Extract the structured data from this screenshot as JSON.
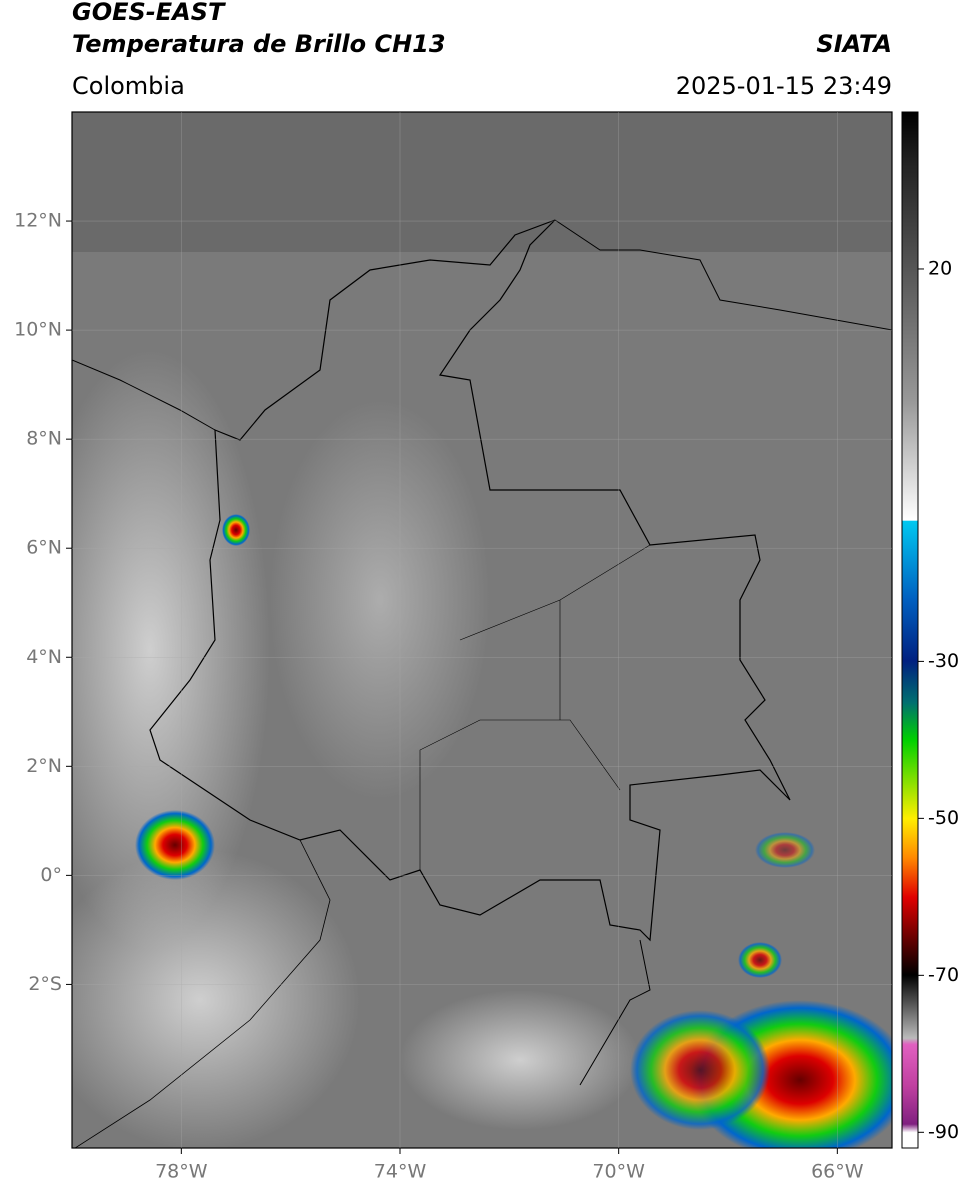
{
  "header": {
    "title": "GOES-EAST",
    "subtitle": "Temperatura de Brillo CH13",
    "region": "Colombia",
    "source": "SIATA",
    "timestamp": "2025-01-15 23:49"
  },
  "map": {
    "xlim": [
      -80,
      -65
    ],
    "ylim": [
      -5,
      14
    ],
    "grid": true,
    "xticks": [
      {
        "value": -78,
        "label": "78°W"
      },
      {
        "value": -74,
        "label": "74°W"
      },
      {
        "value": -70,
        "label": "70°W"
      },
      {
        "value": -66,
        "label": "66°W"
      }
    ],
    "yticks": [
      {
        "value": 12,
        "label": "12°N"
      },
      {
        "value": 10,
        "label": "10°N"
      },
      {
        "value": 8,
        "label": "8°N"
      },
      {
        "value": 6,
        "label": "6°N"
      },
      {
        "value": 4,
        "label": "4°N"
      },
      {
        "value": 2,
        "label": "2°N"
      },
      {
        "value": 0,
        "label": "0°"
      },
      {
        "value": -2,
        "label": "2°S"
      }
    ]
  },
  "colorbar": {
    "clim": [
      -92,
      40
    ],
    "ticks": [
      20,
      -30,
      -50,
      -70,
      -90
    ]
  }
}
